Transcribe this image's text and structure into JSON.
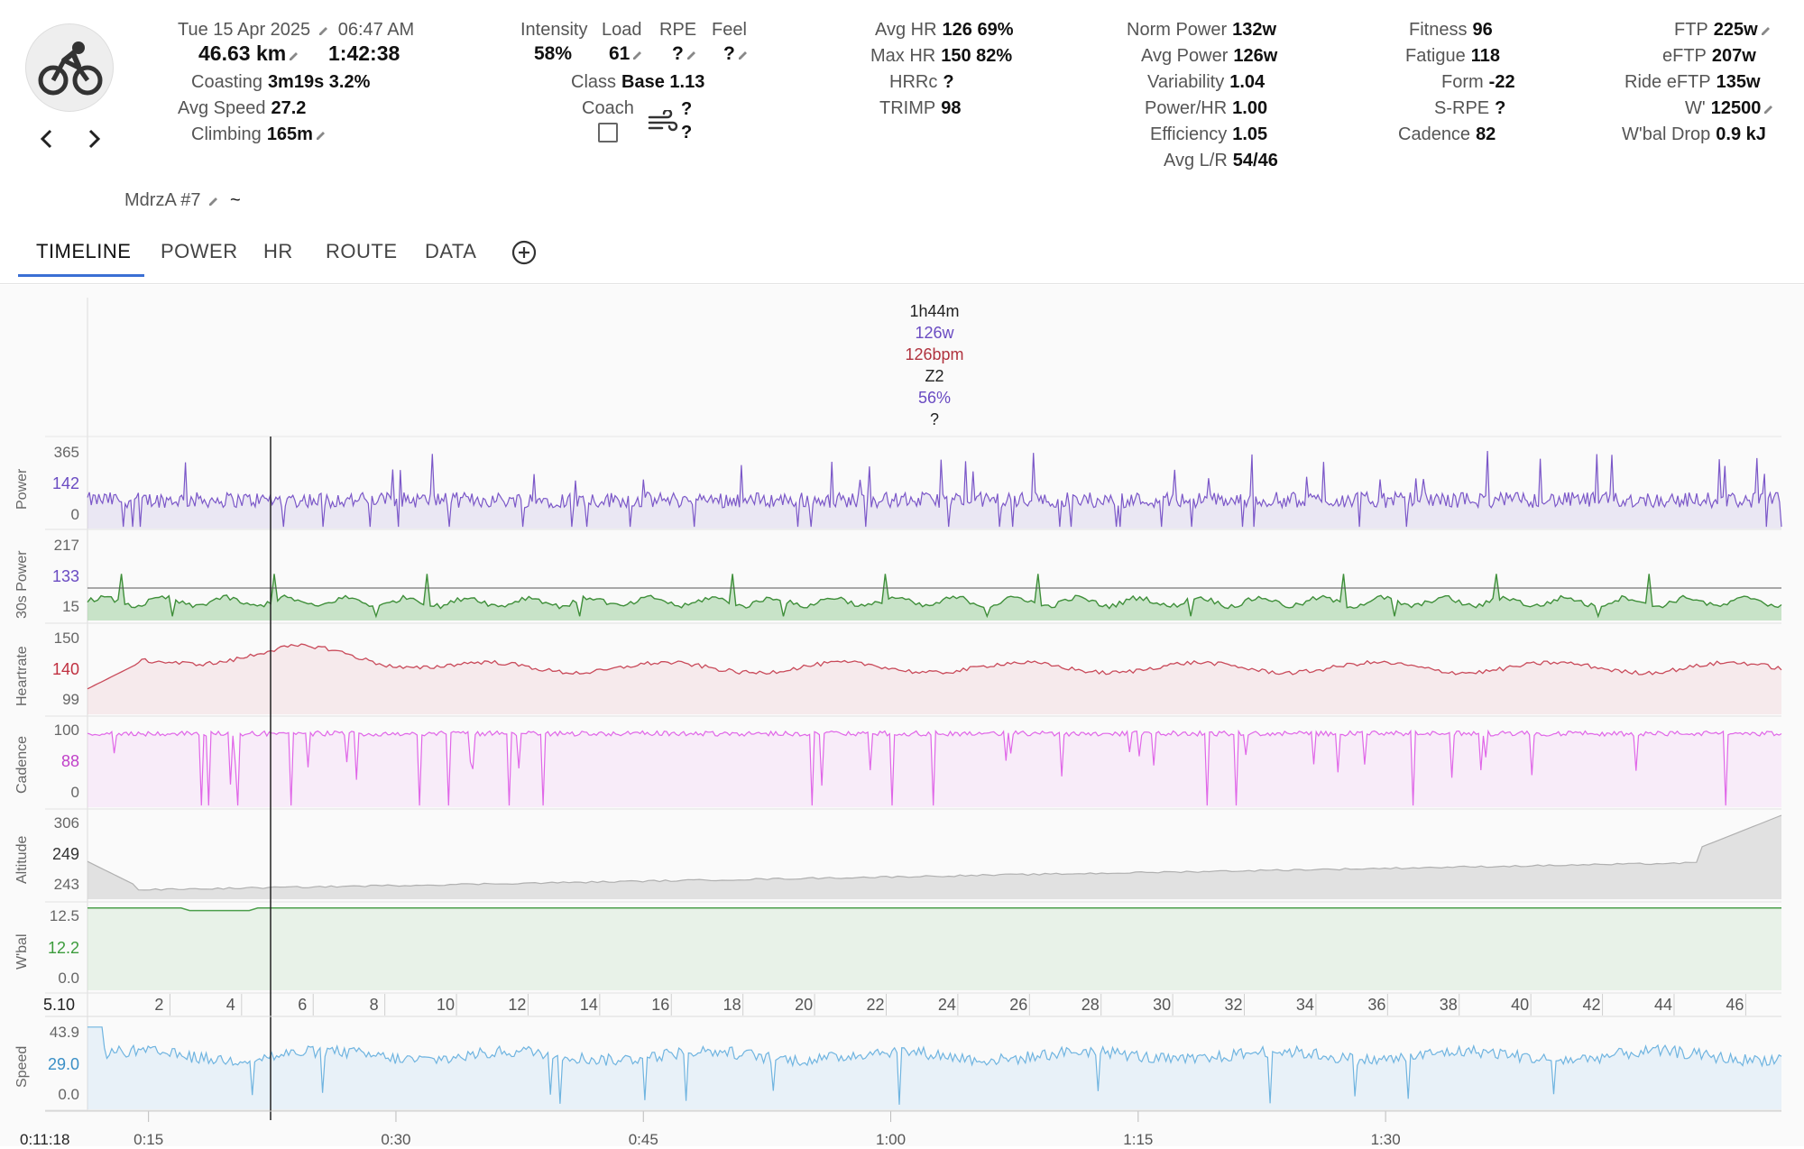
{
  "header": {
    "date": "Tue 15 Apr 2025",
    "time": "06:47 AM",
    "distance": "46.63 km",
    "duration": "1:42:38",
    "coasting_label": "Coasting",
    "coasting_value": "3m19s 3.2%",
    "avg_speed_label": "Avg Speed",
    "avg_speed_value": "27.2",
    "climbing_label": "Climbing",
    "climbing_value": "165m",
    "intensity_label": "Intensity",
    "intensity_value": "58%",
    "load_label": "Load",
    "load_value": "61",
    "rpe_label": "RPE",
    "rpe_value": "?",
    "feel_label": "Feel",
    "feel_value": "?",
    "class_label": "Class",
    "class_value": "Base 1.13",
    "coach_label": "Coach",
    "wind_value_1": "?",
    "wind_value_2": "?",
    "avg_hr_label": "Avg HR",
    "avg_hr_value": "126 69%",
    "max_hr_label": "Max HR",
    "max_hr_value": "150 82%",
    "hrrc_label": "HRRc",
    "hrrc_value": "?",
    "trimp_label": "TRIMP",
    "trimp_value": "98",
    "norm_power_label": "Norm Power",
    "norm_power_value": "132w",
    "avg_power_label": "Avg Power",
    "avg_power_value": "126w",
    "variability_label": "Variability",
    "variability_value": "1.04",
    "power_hr_label": "Power/HR",
    "power_hr_value": "1.00",
    "efficiency_label": "Efficiency",
    "efficiency_value": "1.05",
    "avg_lr_label": "Avg L/R",
    "avg_lr_value": "54/46",
    "fitness_label": "Fitness",
    "fitness_value": "96",
    "fatigue_label": "Fatigue",
    "fatigue_value": "118",
    "form_label": "Form",
    "form_value": "-22",
    "srpe_label": "S-RPE",
    "srpe_value": "?",
    "cadence_label": "Cadence",
    "cadence_value": "82",
    "ftp_label": "FTP",
    "ftp_value": "225w",
    "eftp_label": "eFTP",
    "eftp_value": "207w",
    "ride_eftp_label": "Ride eFTP",
    "ride_eftp_value": "135w",
    "wprime_label": "W'",
    "wprime_value": "12500",
    "wbal_drop_label": "W'bal Drop",
    "wbal_drop_value": "0.9 kJ",
    "gear_label": "MdrzA #7",
    "gear_suffix": "~"
  },
  "tabs": [
    "TIMELINE",
    "POWER",
    "HR",
    "ROUTE",
    "DATA"
  ],
  "summary": {
    "duration": "1h44m",
    "power": "126w",
    "hr": "126bpm",
    "zone": "Z2",
    "pct": "56%",
    "q": "?"
  },
  "colors": {
    "power": "#7b57c8",
    "power30_line": "#3f8f3a",
    "power30_fill": "#b6dab0",
    "hr": "#c94a5a",
    "cadence": "#e066e8",
    "altitude": "#bdbdbd",
    "wbal": "#4c9f4c",
    "speed": "#6fb4e0",
    "tab_active": "#3b6fd4"
  },
  "rows": {
    "power": {
      "name": "Power",
      "ticks": [
        "365",
        "142",
        "0"
      ]
    },
    "power30": {
      "name": "30s Power",
      "ticks": [
        "217",
        "133",
        "15"
      ]
    },
    "heartrate": {
      "name": "Heartrate",
      "ticks": [
        "150",
        "140",
        "99"
      ]
    },
    "cadence": {
      "name": "Cadence",
      "ticks": [
        "100",
        "88",
        "0"
      ]
    },
    "altitude": {
      "name": "Altitude",
      "ticks": [
        "306",
        "249",
        "243"
      ]
    },
    "wbal": {
      "name": "W'bal",
      "ticks": [
        "12.5",
        "12.2",
        "0.0"
      ]
    },
    "speed": {
      "name": "Speed",
      "ticks": [
        "43.9",
        "29.0",
        "0.0"
      ]
    }
  },
  "distance_axis": {
    "start": "5.10",
    "ticks": [
      "2",
      "4",
      "6",
      "8",
      "10",
      "12",
      "14",
      "16",
      "18",
      "20",
      "22",
      "24",
      "26",
      "28",
      "30",
      "32",
      "34",
      "36",
      "38",
      "40",
      "42",
      "44",
      "46"
    ]
  },
  "time_axis": {
    "start": "0:11:18",
    "ticks": [
      "0:15",
      "0:30",
      "0:45",
      "1:00",
      "1:15",
      "1:30"
    ]
  }
}
